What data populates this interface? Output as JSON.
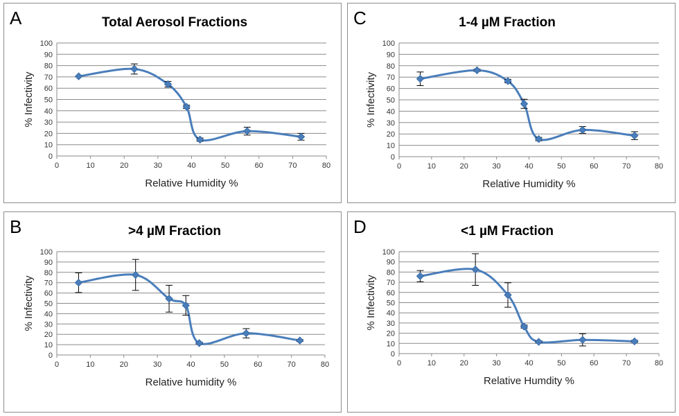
{
  "chart_data": [
    {
      "id": "A",
      "type": "line",
      "panel_letter": "A",
      "title": "Total Aerosol Fractions",
      "xlabel": "Relative Humidity %",
      "ylabel": "% Infectivity",
      "xlim": [
        0,
        80
      ],
      "ylim": [
        0,
        100
      ],
      "xticks": [
        0,
        10,
        20,
        30,
        40,
        50,
        60,
        70,
        80
      ],
      "yticks": [
        0,
        10,
        20,
        30,
        40,
        50,
        60,
        70,
        80,
        90,
        100
      ],
      "grid": true,
      "series": [
        {
          "x": [
            6.5,
            23,
            33,
            38.5,
            42.5,
            56.5,
            72.5
          ],
          "y": [
            70.5,
            77,
            63.5,
            43.5,
            14.5,
            22,
            17
          ],
          "error": [
            0,
            4.5,
            2.5,
            1.5,
            1.5,
            3.5,
            3
          ]
        }
      ]
    },
    {
      "id": "C",
      "type": "line",
      "panel_letter": "C",
      "title": "1-4 µM Fraction",
      "xlabel": "Relative Humidity %",
      "ylabel": "% Infectivity",
      "xlim": [
        0,
        80
      ],
      "ylim": [
        0,
        100
      ],
      "xticks": [
        0,
        10,
        20,
        30,
        40,
        50,
        60,
        70,
        80
      ],
      "yticks": [
        0,
        10,
        20,
        30,
        40,
        50,
        60,
        70,
        80,
        90,
        100
      ],
      "grid": true,
      "series": [
        {
          "x": [
            6.5,
            24,
            33.5,
            38.5,
            43,
            56.5,
            72.5
          ],
          "y": [
            68.5,
            76,
            66.5,
            46.5,
            15.5,
            23.5,
            18.5
          ],
          "error": [
            6,
            1,
            1.5,
            4,
            1.5,
            3,
            3.5
          ]
        }
      ]
    },
    {
      "id": "B",
      "type": "line",
      "panel_letter": "B",
      "title": ">4 µM Fraction",
      "xlabel": "Relative humidity %",
      "ylabel": "% Infectivity",
      "xlim": [
        0,
        80
      ],
      "ylim": [
        0,
        100
      ],
      "xticks": [
        0,
        10,
        20,
        30,
        40,
        50,
        60,
        70,
        80
      ],
      "yticks": [
        0,
        10,
        20,
        30,
        40,
        50,
        60,
        70,
        80,
        90,
        100
      ],
      "grid": true,
      "series": [
        {
          "x": [
            6.5,
            23.5,
            33.5,
            38.5,
            42.5,
            56.5,
            72.5
          ],
          "y": [
            70,
            77.5,
            54.5,
            48,
            11.5,
            21,
            14
          ],
          "error": [
            9.5,
            15,
            13,
            9.5,
            1,
            4.5,
            1
          ]
        }
      ]
    },
    {
      "id": "D",
      "type": "line",
      "panel_letter": "D",
      "title": "<1 µM Fraction",
      "xlabel": "Relative Humdity %",
      "ylabel": "% Infectivity",
      "xlim": [
        0,
        80
      ],
      "ylim": [
        0,
        100
      ],
      "xticks": [
        0,
        10,
        20,
        30,
        40,
        50,
        60,
        70,
        80
      ],
      "yticks": [
        0,
        10,
        20,
        30,
        40,
        50,
        60,
        70,
        80,
        90,
        100
      ],
      "grid": true,
      "series": [
        {
          "x": [
            6.5,
            23.5,
            33.5,
            38.5,
            43,
            56.5,
            72.5
          ],
          "y": [
            76,
            82.5,
            57.5,
            26.5,
            11.5,
            13.5,
            12
          ],
          "error": [
            5.5,
            15.5,
            12,
            1.5,
            1,
            6,
            1
          ]
        }
      ]
    }
  ],
  "colors": {
    "series": "#4a7ebb",
    "grid": "#8a8a8a",
    "border": "#8c8c8c",
    "error_bar": "#000000"
  }
}
